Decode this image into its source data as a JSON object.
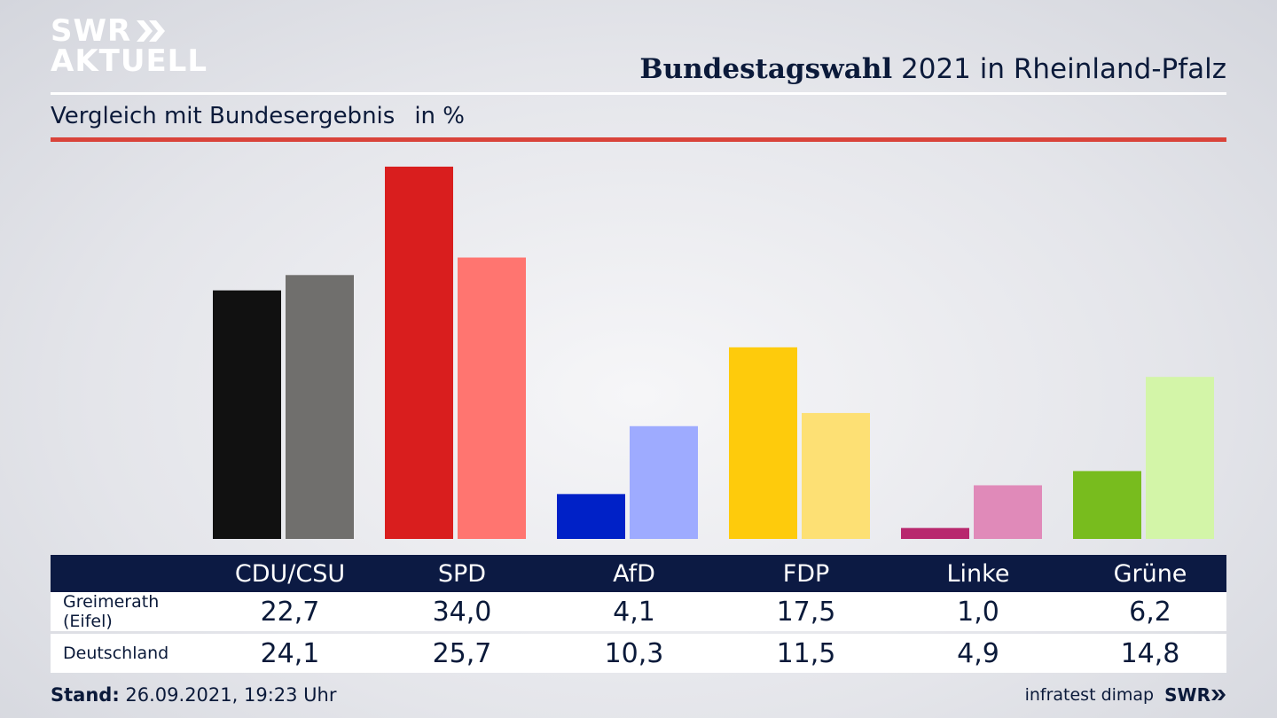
{
  "logo": {
    "line1": "SWR",
    "line2": "AKTUELL"
  },
  "title_bold": "Bundestagswahl",
  "title_rest": " 2021 in Rheinland-Pfalz",
  "subtitle": "Vergleich mit Bundesergebnis",
  "unit": "in %",
  "table": {
    "rows": [
      {
        "label": "Greimerath (Eifel)",
        "values": [
          "22,7",
          "34,0",
          "4,1",
          "17,5",
          "1,0",
          "6,2"
        ]
      },
      {
        "label": "Deutschland",
        "values": [
          "24,1",
          "25,7",
          "10,3",
          "11,5",
          "4,9",
          "14,8"
        ]
      }
    ]
  },
  "footer": {
    "stand_label": "Stand:",
    "stand_value": " 26.09.2021, 19:23 Uhr",
    "source": "infratest dimap",
    "brand": "SWR"
  },
  "chart_data": {
    "type": "bar",
    "categories": [
      "CDU/CSU",
      "SPD",
      "AfD",
      "FDP",
      "Linke",
      "Grüne"
    ],
    "series": [
      {
        "values": [
          22.7,
          34.0,
          4.1,
          17.5,
          1.0,
          6.2
        ]
      },
      {
        "values": [
          24.1,
          25.7,
          10.3,
          11.5,
          4.9,
          14.8
        ]
      }
    ],
    "colors": [
      [
        "#111111",
        "#706f6d"
      ],
      [
        "#d91e1e",
        "#ff7570"
      ],
      [
        "#0021c7",
        "#9eabff"
      ],
      [
        "#fecb0c",
        "#fde074"
      ],
      [
        "#b8286e",
        "#e08ab9"
      ],
      [
        "#78bc1e",
        "#d3f5a8"
      ]
    ],
    "ylim": [
      0,
      34
    ]
  }
}
